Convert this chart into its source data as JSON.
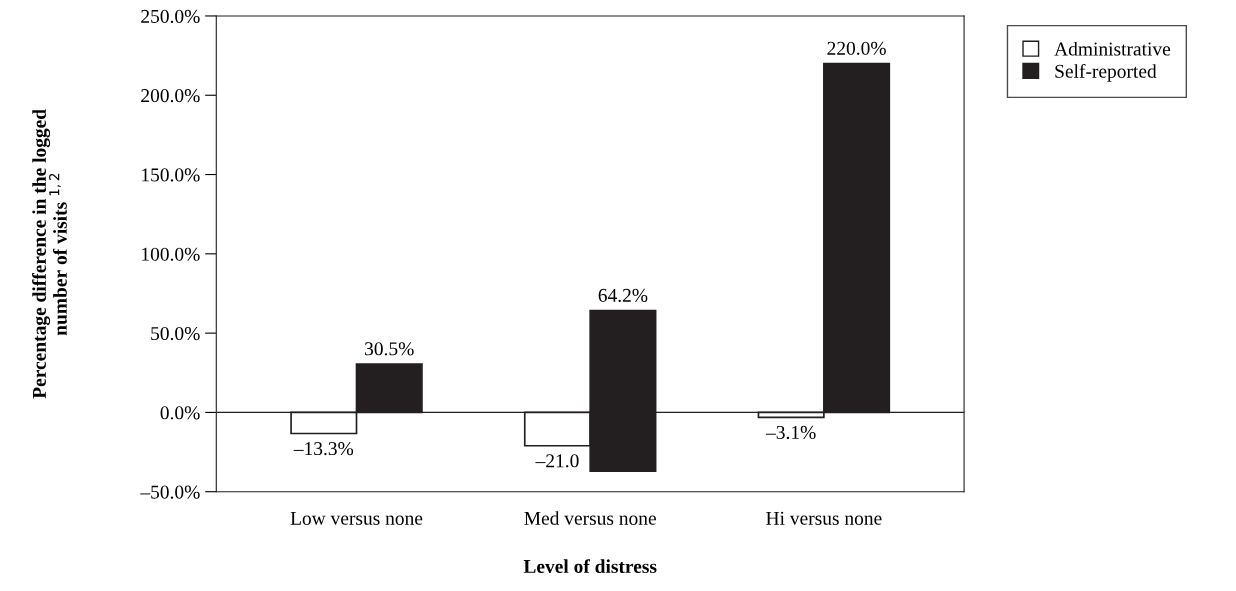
{
  "chart_data": {
    "type": "bar",
    "xlabel": "Level of distress",
    "ylabel": "Percentage difference in the logged\nnumber of visits $^{1,2}$",
    "categories": [
      "Low versus none",
      "Med versus none",
      "Hi versus none"
    ],
    "series": [
      {
        "name": "Administrative",
        "color": "#ffffff",
        "values": [
          -13.3,
          -21.0,
          -3.1
        ],
        "value_labels": [
          "–13.3%",
          "–21.0",
          "–3.1%"
        ]
      },
      {
        "name": "Self-reported",
        "color": "#231f20",
        "values": [
          30.5,
          101.2,
          220.0
        ],
        "base": [
          0,
          -37,
          0
        ],
        "value_labels": [
          "30.5%",
          "64.2%",
          "220.0%"
        ]
      }
    ],
    "ylim": [
      -50,
      250
    ],
    "yticks": [
      {
        "value": -50,
        "label": "–50.0%"
      },
      {
        "value": 0,
        "label": "0.0%"
      },
      {
        "value": 50,
        "label": "50.0%"
      },
      {
        "value": 100,
        "label": "100.0%"
      },
      {
        "value": 150,
        "label": "150.0%"
      },
      {
        "value": 200,
        "label": "200.0%"
      },
      {
        "value": 250,
        "label": "250.0%"
      }
    ],
    "ref_lines": [
      {
        "axis": "y",
        "value": 0,
        "color": "#231f20"
      }
    ],
    "grid": false,
    "legend": "top right"
  }
}
